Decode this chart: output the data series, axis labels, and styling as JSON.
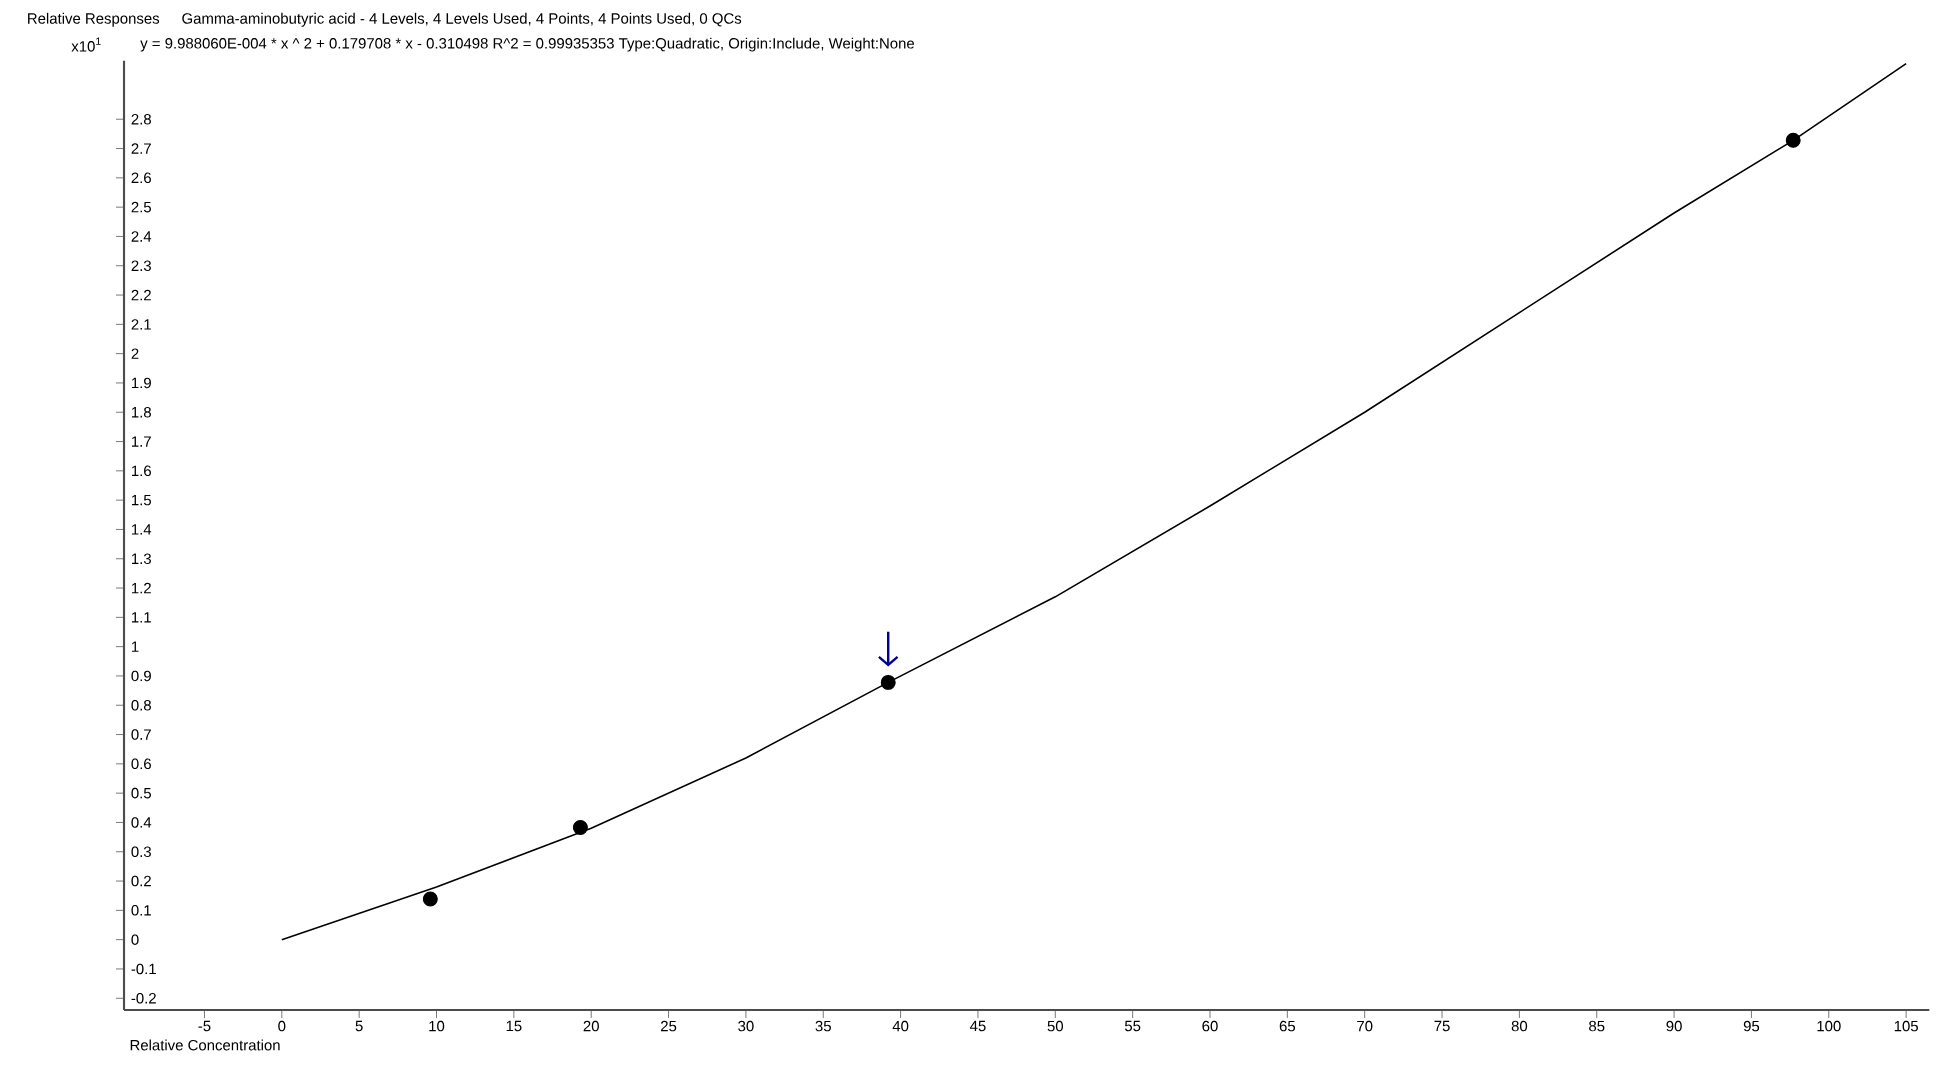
{
  "chart_data": {
    "type": "scatter",
    "title": "Gamma-aminobutyric acid - 4 Levels, 4 Levels Used, 4 Points, 4 Points Used, 0 QCs",
    "ylabel": "Relative Responses",
    "xlabel": "Relative Concentration",
    "annotations": [
      "x10$^{1}$",
      "y = 9.988060E-004 * x ^ 2  + 0.179708 * x  - 0.310498 R^2 = 0.99935353 Type:Quadratic, Origin:Include, Weight:None"
    ],
    "xlim": [
      -10.2,
      106.5
    ],
    "ylim": [
      -0.24,
      3.0
    ],
    "xticks": [
      -5,
      0,
      5,
      10,
      15,
      20,
      25,
      30,
      35,
      40,
      45,
      50,
      55,
      60,
      65,
      70,
      75,
      80,
      85,
      90,
      95,
      100,
      105
    ],
    "yticks": [
      -0.2,
      -0.1,
      0,
      0.1,
      0.2,
      0.3,
      0.4,
      0.5,
      0.6,
      0.7,
      0.8,
      0.9,
      1,
      1.1,
      1.2,
      1.3,
      1.4,
      1.5,
      1.6,
      1.7,
      1.8,
      1.9,
      2,
      2.1,
      2.2,
      2.3,
      2.4,
      2.5,
      2.6,
      2.7,
      2.8
    ],
    "series": [
      {
        "type": "line",
        "color": "#000000",
        "marker": "none",
        "line_style": "solid",
        "x": [
          0,
          10,
          20,
          30,
          39.2,
          50,
          60,
          70,
          80,
          90,
          97.7,
          105
        ],
        "values": [
          0.0,
          0.18,
          0.38,
          0.62,
          0.878,
          1.17,
          1.48,
          1.8,
          2.14,
          2.48,
          2.728,
          2.99
        ]
      },
      {
        "color": "#000000",
        "marker": "circle",
        "x": [
          9.6,
          19.3,
          39.2,
          97.7
        ],
        "values": [
          0.139,
          0.383,
          0.878,
          2.728
        ]
      }
    ]
  }
}
